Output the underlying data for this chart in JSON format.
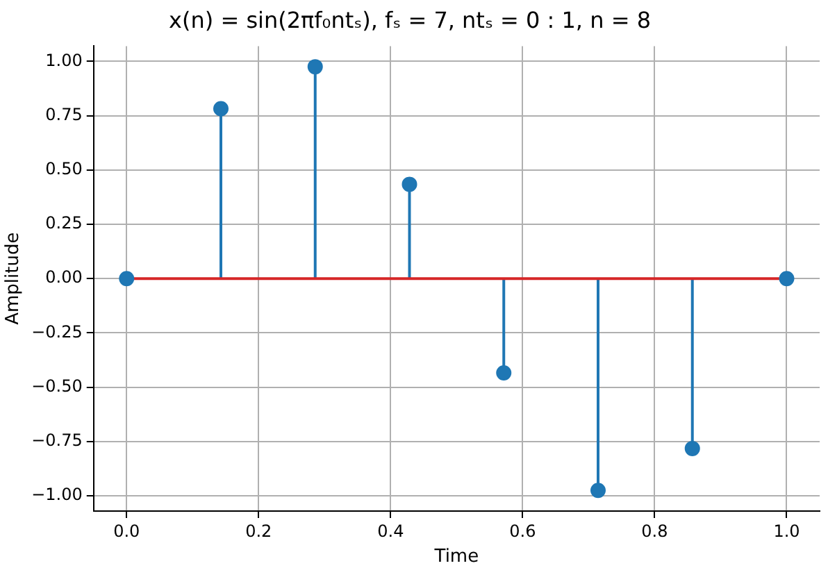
{
  "chart_data": {
    "type": "lollipop",
    "title": "x(n) = sin(2πf₀ntₛ), fₛ = 7, ntₛ = 0 : 1, n = 8",
    "xlabel": "Time",
    "ylabel": "Amplitude",
    "x": [
      0,
      0.142857,
      0.285714,
      0.428571,
      0.571429,
      0.714286,
      0.857143,
      1
    ],
    "series": [
      {
        "color": "#1f77b4",
        "values": [
          0,
          0.782,
          0.975,
          0.434,
          -0.434,
          -0.975,
          -0.782,
          0
        ]
      }
    ],
    "xlim": [
      -0.05,
      1.05
    ],
    "xticks": [
      {
        "value": 0,
        "label": "0.0"
      },
      {
        "value": 0.2,
        "label": "0.2"
      },
      {
        "value": 0.4,
        "label": "0.4"
      },
      {
        "value": 0.6,
        "label": "0.6"
      },
      {
        "value": 0.8,
        "label": "0.8"
      },
      {
        "value": 1,
        "label": "1.0"
      }
    ],
    "ylim": [
      -1.07,
      1.07
    ],
    "yticks": [
      {
        "value": -1,
        "label": "−1.00"
      },
      {
        "value": -0.75,
        "label": "−0.75"
      },
      {
        "value": -0.5,
        "label": "−0.50"
      },
      {
        "value": -0.25,
        "label": "−0.25"
      },
      {
        "value": 0,
        "label": "0.00"
      },
      {
        "value": 0.25,
        "label": "0.25"
      },
      {
        "value": 0.5,
        "label": "0.50"
      },
      {
        "value": 0.75,
        "label": "0.75"
      },
      {
        "value": 1,
        "label": "1.00"
      }
    ],
    "ref_lines": [
      {
        "axis": "y",
        "value": 0,
        "color": "#d62728"
      }
    ],
    "grid": true,
    "marker": "circle",
    "legend": false
  }
}
